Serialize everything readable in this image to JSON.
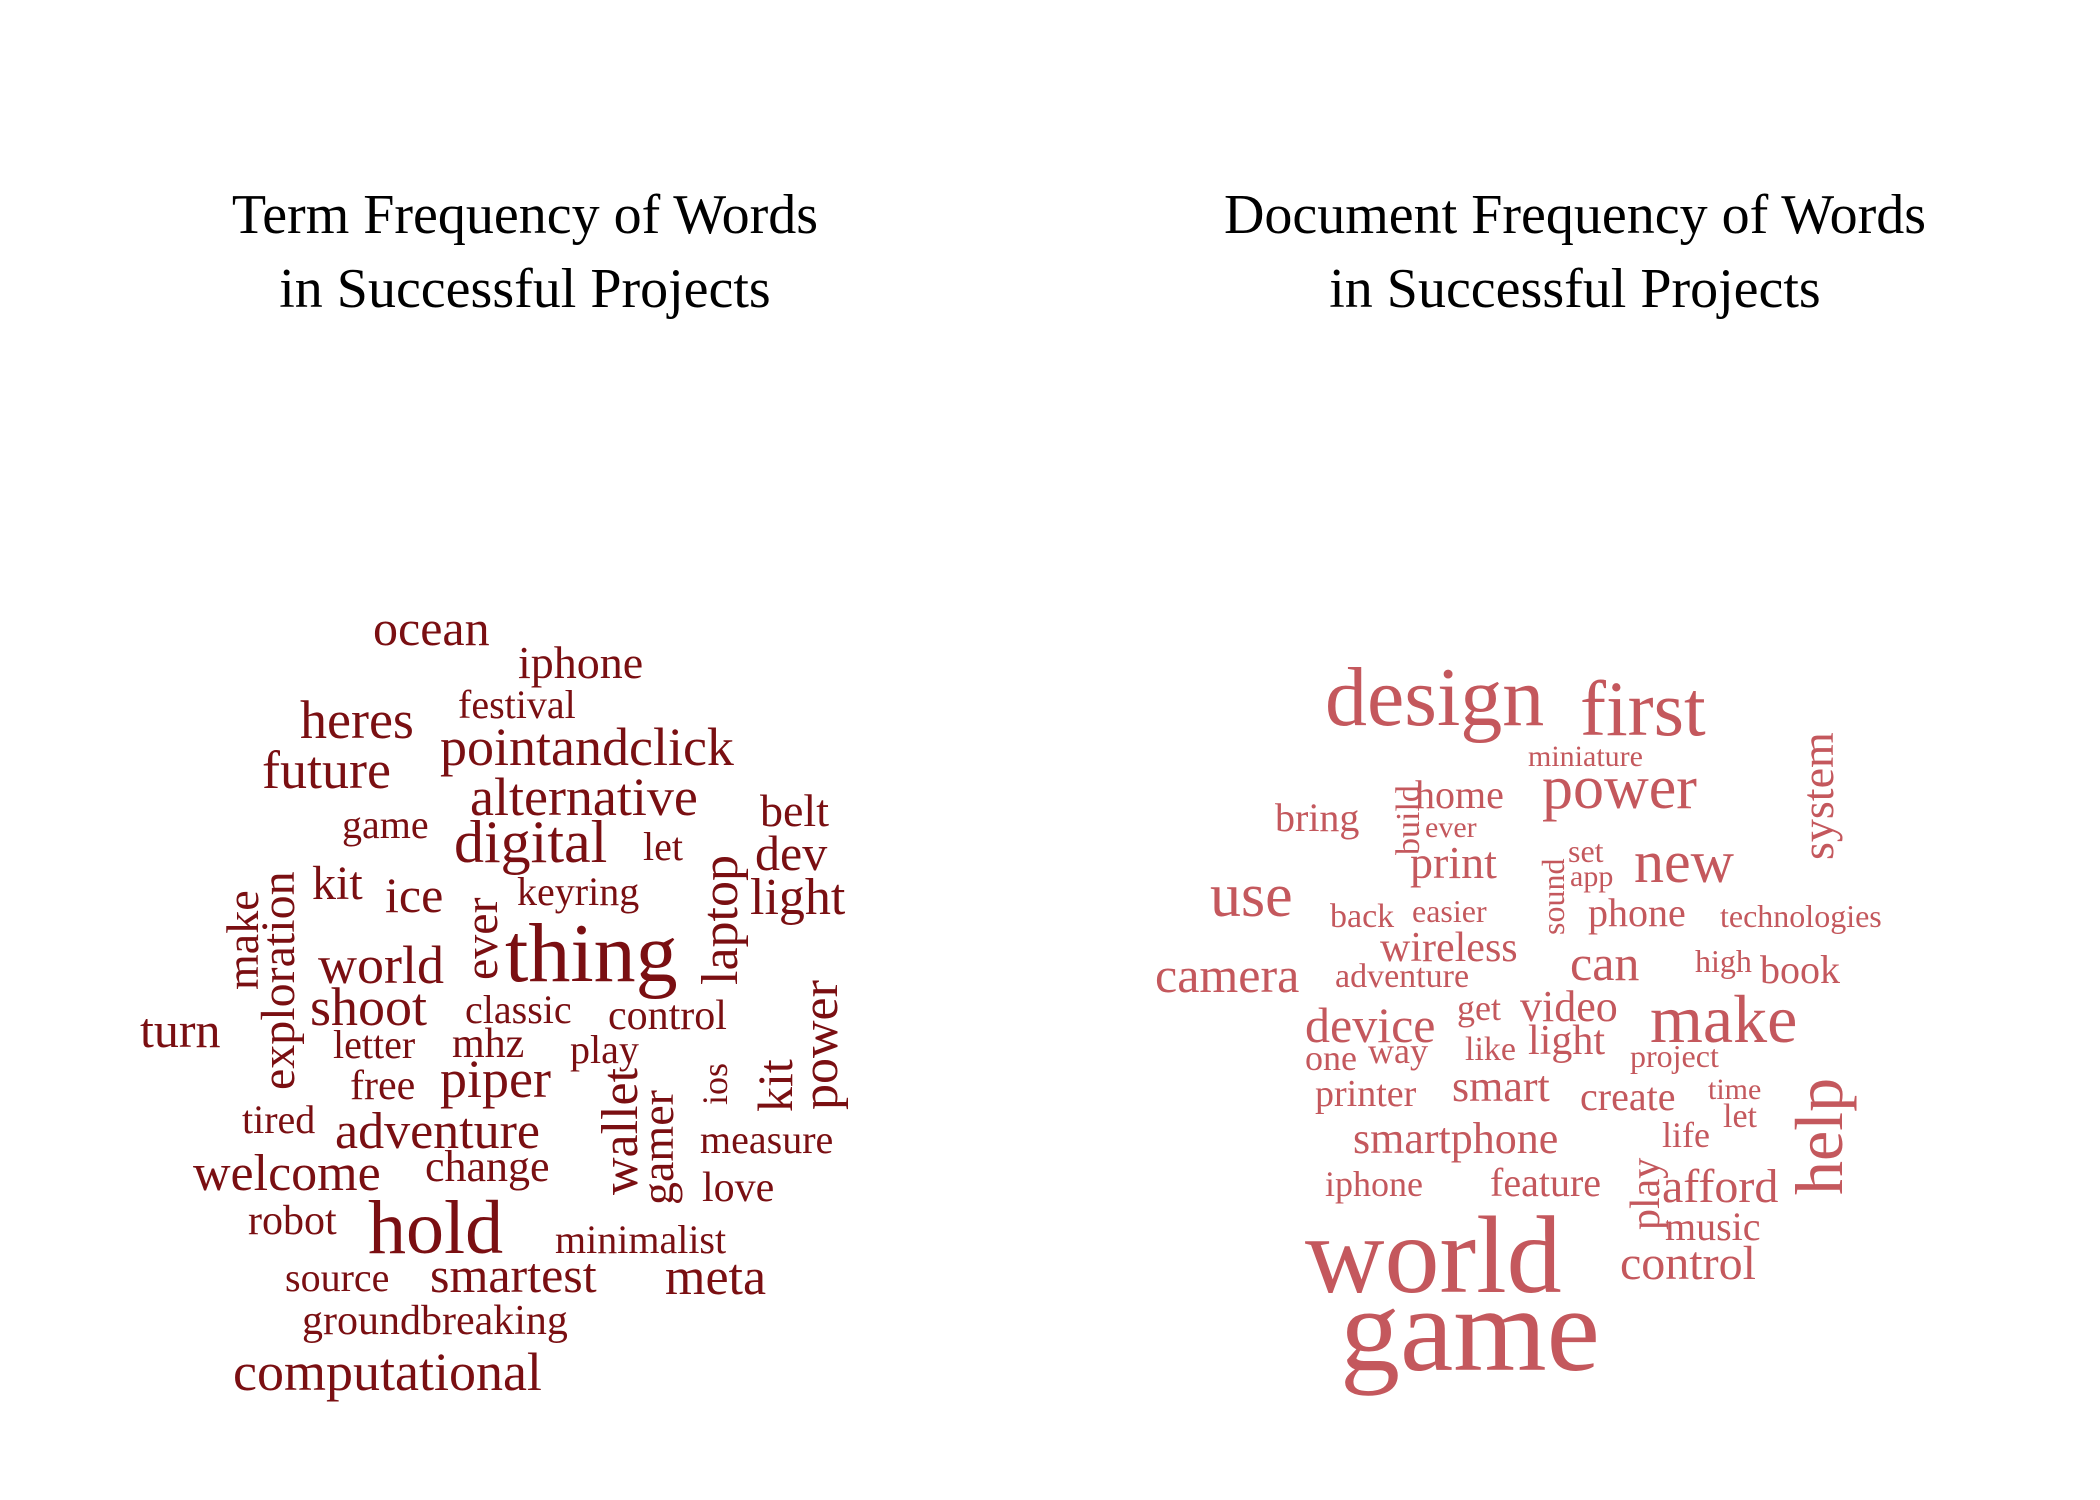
{
  "figures": [
    {
      "id": "term-frequency",
      "title_lines": [
        "Term Frequency of Words",
        "in Successful Projects"
      ],
      "color": "#7a0f12",
      "words": [
        "ocean",
        "iphone",
        "festival",
        "heres",
        "pointandclick",
        "future",
        "alternative",
        "game",
        "belt",
        "digital",
        "let",
        "dev",
        "kit",
        "ice",
        "keyring",
        "light",
        "make",
        "exploration",
        "ever",
        "thing",
        "laptop",
        "world",
        "power",
        "shoot",
        "classic",
        "control",
        "turn",
        "letter",
        "mhz",
        "play",
        "free",
        "piper",
        "ios",
        "kit",
        "tired",
        "adventure",
        "wallet",
        "gamer",
        "measure",
        "welcome",
        "change",
        "love",
        "robot",
        "hold",
        "minimalist",
        "source",
        "smartest",
        "meta",
        "groundbreaking",
        "computational"
      ]
    },
    {
      "id": "document-frequency",
      "title_lines": [
        "Document Frequency of Words",
        "in Successful Projects"
      ],
      "color": "#c4585d",
      "words": [
        "design",
        "first",
        "miniature",
        "system",
        "home",
        "power",
        "bring",
        "build",
        "ever",
        "set",
        "print",
        "new",
        "use",
        "sound",
        "app",
        "back",
        "easier",
        "phone",
        "technologies",
        "wireless",
        "camera",
        "adventure",
        "can",
        "high",
        "book",
        "device",
        "get",
        "video",
        "make",
        "one",
        "way",
        "like",
        "light",
        "project",
        "help",
        "printer",
        "smart",
        "create",
        "time",
        "let",
        "smartphone",
        "life",
        "iphone",
        "feature",
        "play",
        "afford",
        "music",
        "world",
        "control",
        "game"
      ]
    }
  ]
}
